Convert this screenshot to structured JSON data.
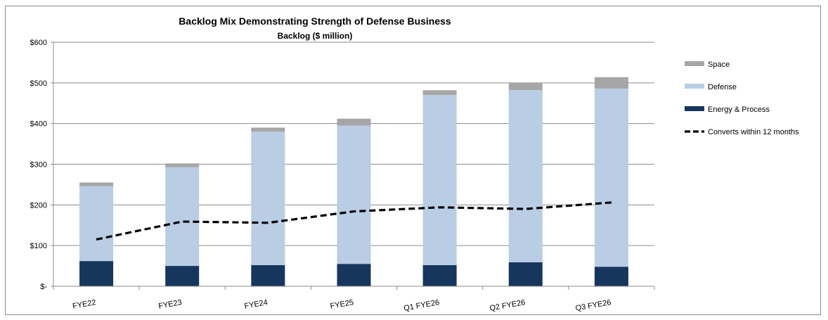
{
  "chart_data": {
    "type": "bar",
    "stacked": true,
    "title": "Backlog Mix Demonstrating Strength of Defense Business",
    "subtitle": "Backlog ($ million)",
    "xlabel": "",
    "ylabel": "",
    "ylim": [
      0,
      600
    ],
    "yticks": [
      0,
      100,
      200,
      300,
      400,
      500,
      600
    ],
    "ytick_labels": [
      "$-",
      "$100",
      "$200",
      "$300",
      "$400",
      "$500",
      "$600"
    ],
    "categories": [
      "FYE22",
      "FYE23",
      "FYE24",
      "FYE25",
      "Q1 FYE26",
      "Q2 FYE26",
      "Q3 FYE26"
    ],
    "series": [
      {
        "name": "Energy & Process",
        "values": [
          62,
          50,
          52,
          55,
          52,
          59,
          48
        ],
        "color": "#17365d"
      },
      {
        "name": "Defense",
        "values": [
          184,
          243,
          328,
          340,
          418,
          423,
          438
        ],
        "color": "#b9cde5"
      },
      {
        "name": "Space",
        "values": [
          9,
          9,
          10,
          17,
          12,
          18,
          28
        ],
        "color": "#a6a6a6"
      }
    ],
    "line_series": {
      "name": "Converts within 12 months",
      "values": [
        115,
        159,
        156,
        184,
        194,
        190,
        206
      ],
      "color": "#000000",
      "style": "dashed"
    },
    "legend": {
      "placement": "right",
      "items": [
        {
          "label": "Space",
          "color": "#a6a6a6",
          "kind": "box"
        },
        {
          "label": "Defense",
          "color": "#b9cde5",
          "kind": "box"
        },
        {
          "label": "Energy & Process",
          "color": "#17365d",
          "kind": "box"
        },
        {
          "label": "Converts within 12 months",
          "color": "#000000",
          "kind": "dash"
        }
      ]
    },
    "grid": true
  }
}
